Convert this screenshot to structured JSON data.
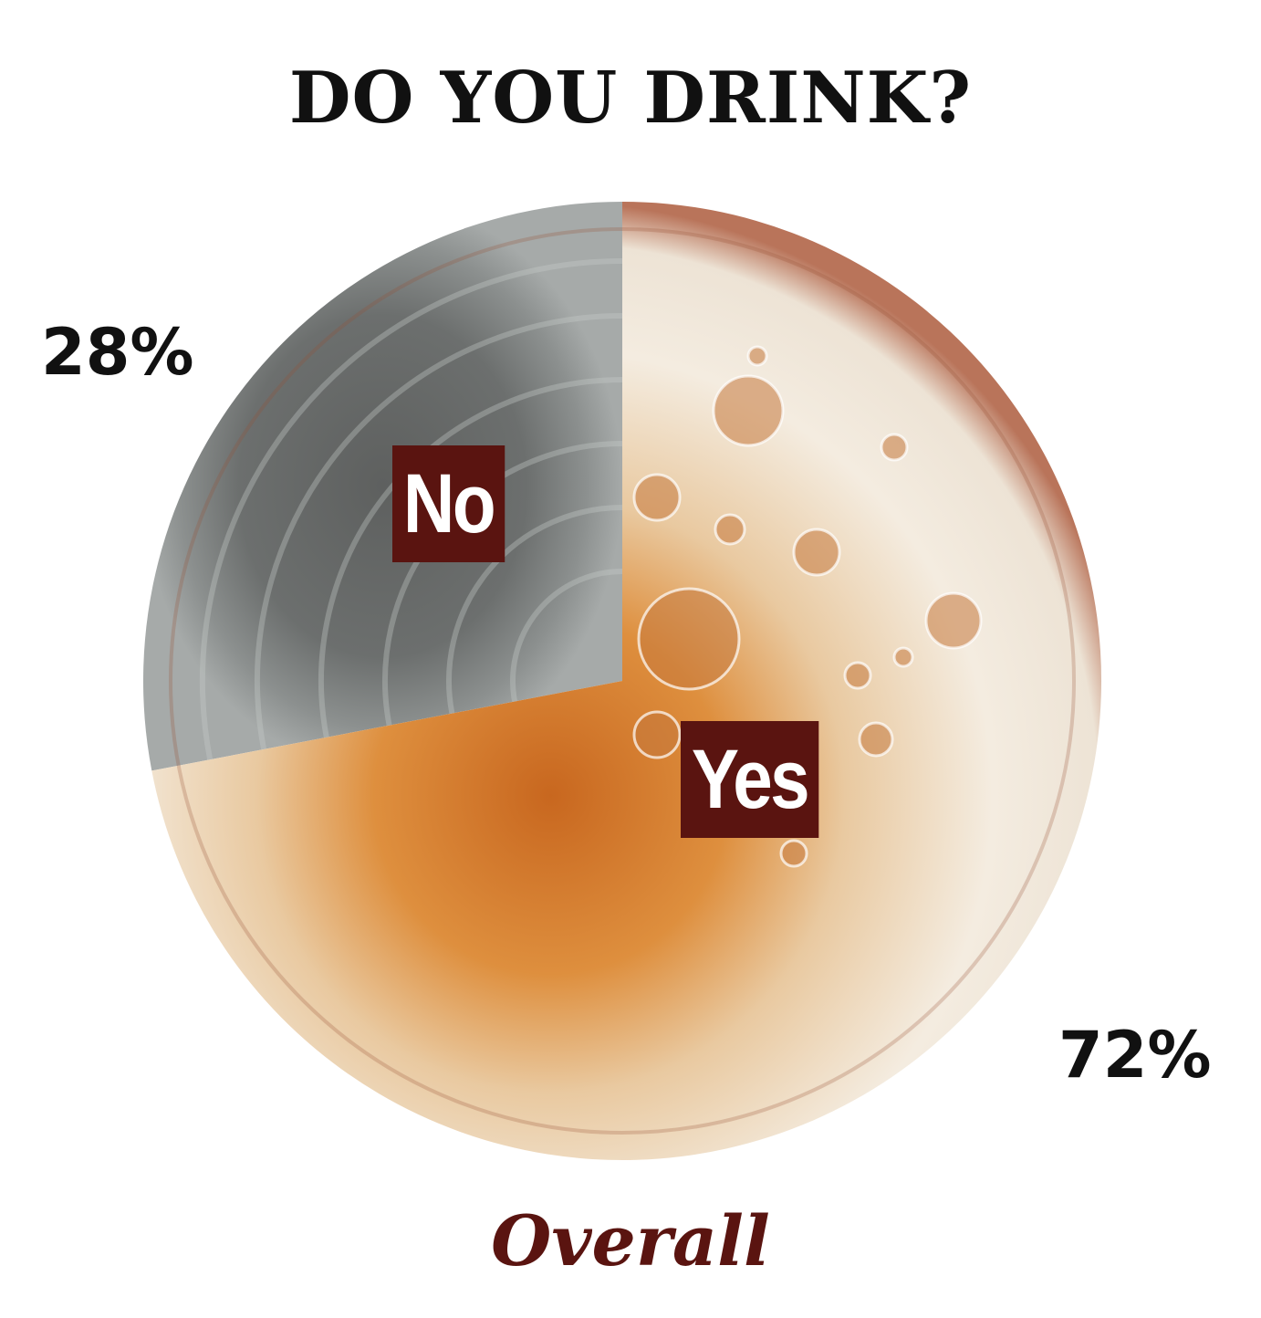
{
  "chart_data": {
    "type": "pie",
    "title": "DO YOU DRINK?",
    "subtitle": "Overall",
    "slices": [
      {
        "label": "No",
        "value": 28,
        "value_label": "28%",
        "color": "#6b6e6c"
      },
      {
        "label": "Yes",
        "value": 72,
        "value_label": "72%",
        "color": "#d98a3c"
      }
    ],
    "start_angle": "12 o'clock",
    "direction": "counterclockwise for No",
    "label_color": "#5a1410"
  }
}
